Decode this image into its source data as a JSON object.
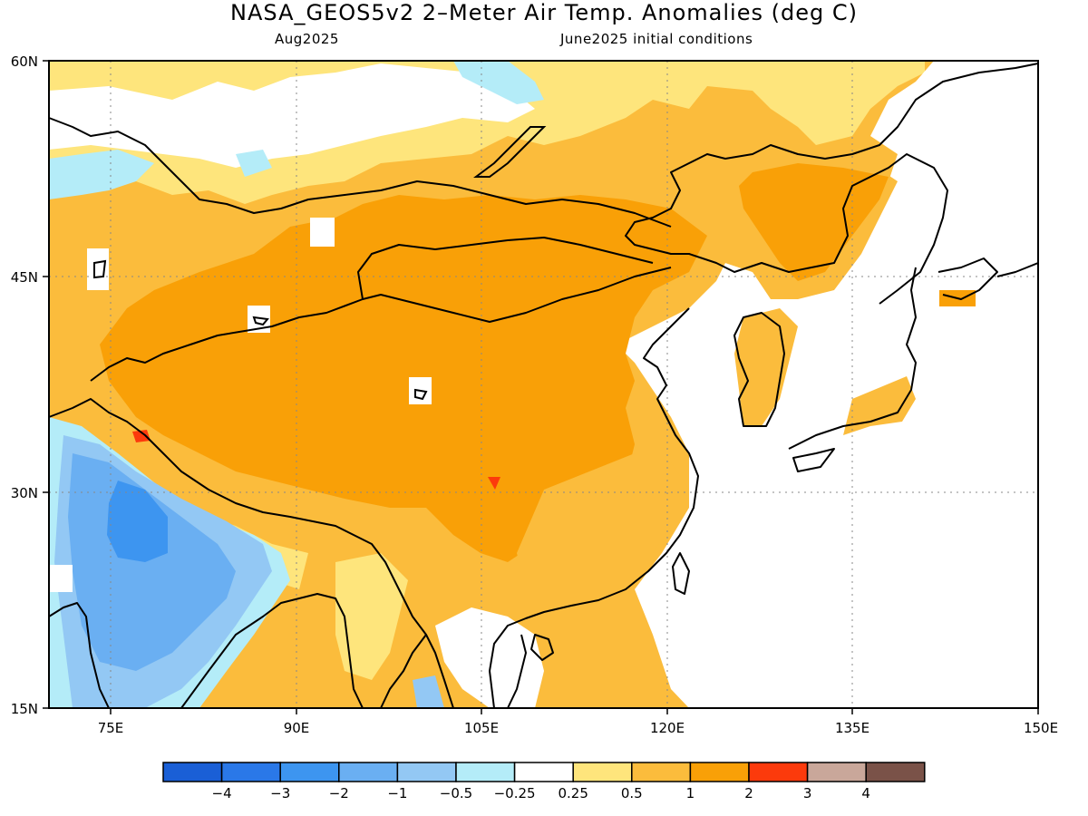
{
  "title": "NASA_GEOS5v2 2–Meter Air Temp. Anomalies (deg C)",
  "subtitle_left": "Aug2025",
  "subtitle_right": "June2025 initial conditions",
  "axes": {
    "lon_labels": [
      "75E",
      "90E",
      "105E",
      "120E",
      "135E",
      "150E"
    ],
    "lat_labels": [
      "60N",
      "45N",
      "30N",
      "15N"
    ],
    "lon_range": [
      70,
      150
    ],
    "lat_range": [
      15,
      60
    ]
  },
  "colorbar": {
    "colors": [
      "#1a5fd6",
      "#2a78e8",
      "#3d95f0",
      "#6aaff2",
      "#93c8f4",
      "#b4ecf8",
      "#ffffff",
      "#fee57c",
      "#fbbc3c",
      "#f9a007",
      "#fc3a0c",
      "#c9a79a",
      "#7a5248"
    ],
    "tick_labels": [
      "−4",
      "−3",
      "−2",
      "−1",
      "−0.5",
      "−0.25",
      "0.25",
      "0.5",
      "1",
      "2",
      "3",
      "4"
    ]
  },
  "map_colors": {
    "anomaly_0.5_1": "#fbbc3c",
    "anomaly_1_2": "#f9a007",
    "anomaly_0.25_0.5": "#fee57c",
    "anomaly_-0.5_-0.25": "#b4ecf8",
    "anomaly_-1_-0.5": "#93c8f4",
    "anomaly_-2_-1": "#6aaff2",
    "anomaly_-3_-2": "#3d95f0",
    "anomaly_2_3": "#fc3a0c"
  }
}
